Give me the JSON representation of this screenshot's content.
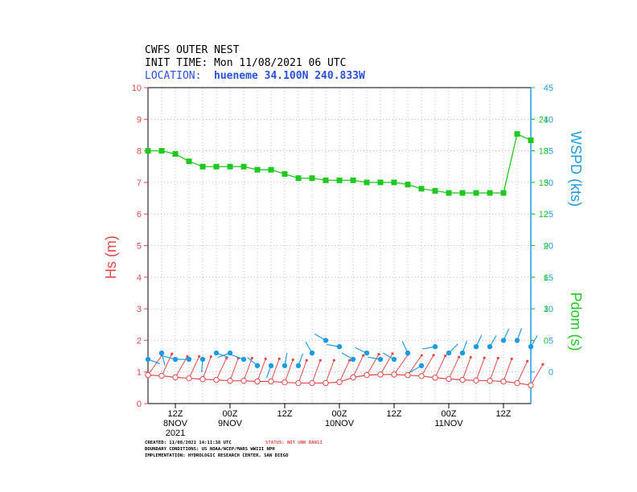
{
  "header": {
    "title": "CWFS OUTER NEST",
    "init_time": "INIT TIME: Mon 11/08/2021 06 UTC",
    "location_label": "LOCATION:",
    "location_value": "hueneme 34.100N 240.833W"
  },
  "footer": {
    "created_prefix": "CREATED: 11/08/2021 14:11:38 UTC",
    "status": "STATUS: NOT UNK RAN13",
    "boundary": "BOUNDARY CONDITIONS: US NOAA/NCEP/MARS WWIII NPH",
    "implementation": "IMPLEMENTATION: HYDROLOGIC RESEARCH CENTER, SAN DIEGO"
  },
  "colors": {
    "hs": "#e04848",
    "wspd": "#1e9be0",
    "period": "#1ec81e",
    "location": "#2a50d8",
    "grid": "#aaaaaa"
  },
  "chart_data": {
    "type": "line",
    "x_unit": "hours since 11/08/2021 06 UTC",
    "time_ticks": [
      {
        "label": "12Z",
        "sub1": "8NOV",
        "sub2": "2021",
        "hour": 6
      },
      {
        "label": "00Z",
        "sub1": "9NOV",
        "sub2": "",
        "hour": 18
      },
      {
        "label": "12Z",
        "sub1": "",
        "sub2": "",
        "hour": 30
      },
      {
        "label": "00Z",
        "sub1": "10NOV",
        "sub2": "",
        "hour": 42
      },
      {
        "label": "12Z",
        "sub1": "",
        "sub2": "",
        "hour": 54
      },
      {
        "label": "00Z",
        "sub1": "11NOV",
        "sub2": "",
        "hour": 66
      },
      {
        "label": "12Z",
        "sub1": "",
        "sub2": "",
        "hour": 78
      }
    ],
    "xlim": [
      0,
      84
    ],
    "hs": {
      "ylabel": "Hs (m)",
      "ylim": [
        0,
        10
      ],
      "ticks": [
        "0",
        "1",
        "2",
        "3",
        "4",
        "5",
        "6",
        "7",
        "8",
        "9",
        "10"
      ],
      "x": [
        0,
        3,
        6,
        9,
        12,
        15,
        18,
        21,
        24,
        27,
        30,
        33,
        36,
        39,
        42,
        45,
        48,
        51,
        54,
        57,
        60,
        63,
        66,
        69,
        72,
        75,
        78,
        81,
        84
      ],
      "values": [
        0.9,
        0.88,
        0.83,
        0.8,
        0.77,
        0.75,
        0.72,
        0.72,
        0.7,
        0.7,
        0.67,
        0.65,
        0.65,
        0.65,
        0.68,
        0.83,
        0.9,
        0.92,
        0.92,
        0.9,
        0.87,
        0.82,
        0.78,
        0.75,
        0.73,
        0.72,
        0.7,
        0.65,
        0.58
      ],
      "direction_deg": [
        215,
        205,
        210,
        205,
        200,
        205,
        200,
        200,
        200,
        200,
        200,
        200,
        200,
        200,
        205,
        205,
        210,
        210,
        215,
        215,
        210,
        205,
        205,
        200,
        200,
        200,
        200,
        205,
        210
      ]
    },
    "wspd": {
      "ylabel": "WSPD (kts)",
      "ylim": [
        -5,
        45
      ],
      "ticks": [
        "0",
        "5",
        "10",
        "15",
        "20",
        "25",
        "30",
        "35",
        "40",
        "45"
      ],
      "x": [
        0,
        3,
        6,
        9,
        12,
        15,
        18,
        21,
        24,
        27,
        30,
        33,
        36,
        39,
        42,
        45,
        48,
        51,
        54,
        57,
        60,
        63,
        66,
        69,
        72,
        75,
        78,
        81,
        84
      ],
      "values": [
        2,
        3,
        2,
        2,
        2,
        3,
        3,
        2,
        1,
        1,
        1,
        1,
        3,
        5,
        4,
        2,
        3,
        2,
        2,
        3,
        1,
        4,
        3,
        3,
        4,
        4,
        5,
        5,
        4
      ],
      "direction_deg": [
        110,
        165,
        285,
        270,
        185,
        110,
        250,
        290,
        310,
        200,
        10,
        20,
        330,
        300,
        280,
        300,
        295,
        280,
        300,
        335,
        240,
        260,
        45,
        20,
        25,
        30,
        25,
        20,
        30
      ]
    },
    "period": {
      "ylabel": "Pdom (s)",
      "ylim": [
        -6,
        24
      ],
      "ticks": [
        "0",
        "3",
        "6",
        "9",
        "12",
        "15",
        "18",
        "21"
      ],
      "x": [
        0,
        3,
        6,
        9,
        12,
        15,
        18,
        21,
        24,
        27,
        30,
        33,
        36,
        39,
        42,
        45,
        48,
        51,
        54,
        57,
        60,
        63,
        66,
        69,
        72,
        75,
        78,
        81,
        84
      ],
      "values": [
        18,
        18,
        17.7,
        17,
        16.5,
        16.5,
        16.5,
        16.5,
        16.2,
        16.2,
        15.8,
        15.4,
        15.4,
        15.2,
        15.2,
        15.2,
        15.0,
        15.0,
        15.0,
        14.8,
        14.4,
        14.2,
        14.0,
        14.0,
        14.0,
        14.0,
        14.0,
        19.6,
        19.0
      ]
    },
    "grid": true
  }
}
